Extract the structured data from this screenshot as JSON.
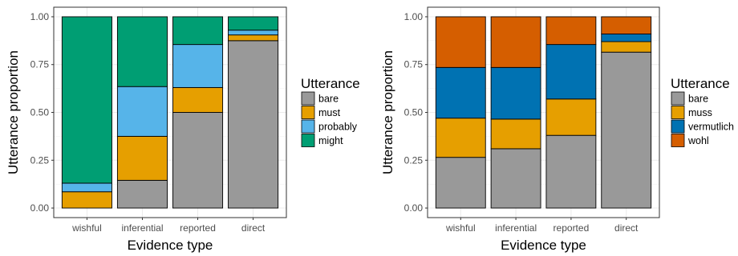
{
  "chart_data": [
    {
      "type": "bar",
      "stacked": true,
      "categories": [
        "wishful",
        "inferential",
        "reported",
        "direct"
      ],
      "xlabel": "Evidence type",
      "ylabel": "Utterance proportion",
      "ylim": [
        0,
        1
      ],
      "yticks": [
        "0.00",
        "0.25",
        "0.50",
        "0.75",
        "1.00"
      ],
      "grid": true,
      "legend_title": "Utterance",
      "legend_position": "right",
      "series": [
        {
          "name": "bare",
          "color": "#999999",
          "values": [
            0.0,
            0.145,
            0.5,
            0.875
          ]
        },
        {
          "name": "must",
          "color": "#E69F00",
          "values": [
            0.085,
            0.23,
            0.13,
            0.03
          ]
        },
        {
          "name": "probably",
          "color": "#56B4E9",
          "values": [
            0.045,
            0.26,
            0.225,
            0.025
          ]
        },
        {
          "name": "might",
          "color": "#009E73",
          "values": [
            0.87,
            0.365,
            0.145,
            0.07
          ]
        }
      ]
    },
    {
      "type": "bar",
      "stacked": true,
      "categories": [
        "wishful",
        "inferential",
        "reported",
        "direct"
      ],
      "xlabel": "Evidence type",
      "ylabel": "Utterance proportion",
      "ylim": [
        0,
        1
      ],
      "yticks": [
        "0.00",
        "0.25",
        "0.50",
        "0.75",
        "1.00"
      ],
      "grid": true,
      "legend_title": "Utterance",
      "legend_position": "right",
      "series": [
        {
          "name": "bare",
          "color": "#999999",
          "values": [
            0.265,
            0.31,
            0.38,
            0.815
          ]
        },
        {
          "name": "muss",
          "color": "#E69F00",
          "values": [
            0.205,
            0.155,
            0.19,
            0.055
          ]
        },
        {
          "name": "vermutlich",
          "color": "#0072B2",
          "values": [
            0.265,
            0.27,
            0.285,
            0.04
          ]
        },
        {
          "name": "wohl",
          "color": "#D55E00",
          "values": [
            0.265,
            0.265,
            0.145,
            0.09
          ]
        }
      ]
    }
  ]
}
